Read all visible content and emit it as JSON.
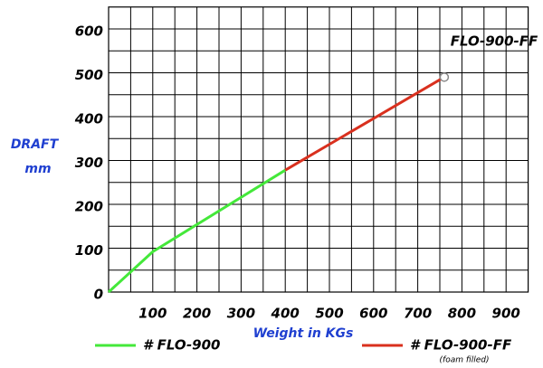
{
  "chart_data": {
    "type": "line",
    "xlabel": "Weight in KGs",
    "ylabel": "DRAFT",
    "ylabel_unit": "mm",
    "annotation": "FLO-900-FF",
    "legend_note": "(foam filled)",
    "xlim": [
      0,
      950
    ],
    "ylim": [
      0,
      650
    ],
    "xticks": [
      100,
      200,
      300,
      400,
      500,
      600,
      700,
      800,
      900
    ],
    "yticks": [
      0,
      100,
      200,
      300,
      400,
      500,
      600
    ],
    "minor_xticks": [
      50,
      150,
      250,
      350,
      450,
      550,
      650,
      750,
      850
    ],
    "minor_yticks": [
      50,
      150,
      250,
      350,
      450,
      550
    ],
    "grid": true,
    "legend": "bottom",
    "series": [
      {
        "name": "# FLO-900",
        "color": "#44e83a",
        "x": [
          0,
          100,
          400
        ],
        "values": [
          0,
          92,
          278
        ]
      },
      {
        "name": "# FLO-900-FF",
        "color": "#d9301e",
        "x": [
          400,
          760
        ],
        "values": [
          278,
          490
        ],
        "end_marker": true
      }
    ]
  }
}
